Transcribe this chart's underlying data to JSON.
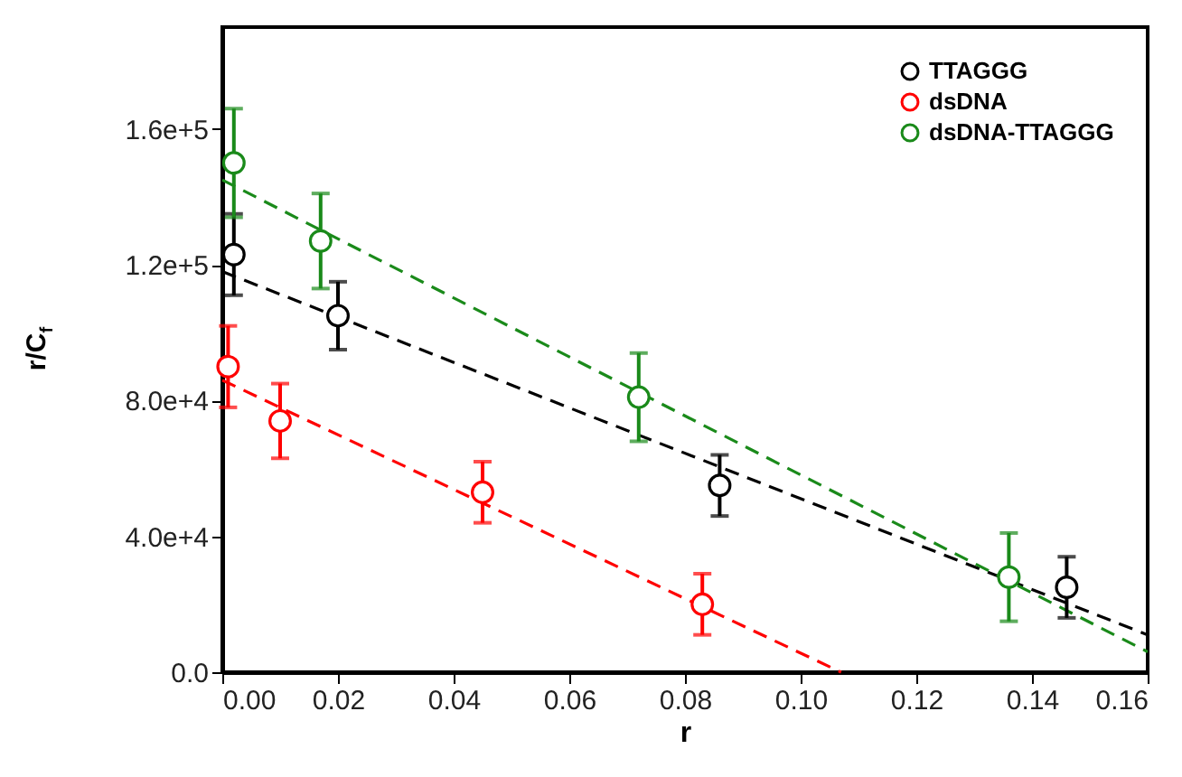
{
  "chart_data": {
    "type": "scatter",
    "xlabel": "r",
    "ylabel": "r/C$_{f}$",
    "xlim": [
      0,
      0.16
    ],
    "ylim": [
      0,
      190000
    ],
    "xticks": [
      {
        "value": 0,
        "label": "0.00"
      },
      {
        "value": 0.02,
        "label": "0.02"
      },
      {
        "value": 0.04,
        "label": "0.04"
      },
      {
        "value": 0.06,
        "label": "0.06"
      },
      {
        "value": 0.08,
        "label": "0.08"
      },
      {
        "value": 0.1,
        "label": "0.10"
      },
      {
        "value": 0.12,
        "label": "0.12"
      },
      {
        "value": 0.14,
        "label": "0.14"
      },
      {
        "value": 0.16,
        "label": "0.16"
      }
    ],
    "yticks": [
      {
        "value": 0,
        "label": "0.0"
      },
      {
        "value": 40000,
        "label": "4.0e+4"
      },
      {
        "value": 80000,
        "label": "8.0e+4"
      },
      {
        "value": 120000,
        "label": "1.2e+5"
      },
      {
        "value": 160000,
        "label": "1.6e+5"
      }
    ],
    "grid": false,
    "legend": "top right",
    "series": [
      {
        "name": "TTAGGG",
        "marker": "circle",
        "color": "#000000",
        "x": [
          0.002,
          0.02,
          0.086,
          0.146
        ],
        "values": [
          123000,
          105000,
          55000,
          25000
        ],
        "errors": [
          12000,
          10000,
          9000,
          9000
        ]
      },
      {
        "name": "dsDNA",
        "marker": "circle",
        "color": "#ff0000",
        "x": [
          0.001,
          0.01,
          0.045,
          0.083
        ],
        "values": [
          90000,
          74000,
          53000,
          20000
        ],
        "errors": [
          12000,
          11000,
          9000,
          9000
        ]
      },
      {
        "name": "dsDNA-TTAGGG",
        "marker": "circle",
        "color": "#1a8a1a",
        "x": [
          0.002,
          0.017,
          0.072,
          0.136
        ],
        "values": [
          150000,
          127000,
          81000,
          28000
        ],
        "errors": [
          16000,
          14000,
          13000,
          13000
        ]
      },
      {
        "type": "line",
        "color": "#000000",
        "line_style": "dashed",
        "x": [
          0,
          0.16
        ],
        "values": [
          118000,
          11000
        ]
      },
      {
        "type": "line",
        "color": "#ff0000",
        "line_style": "dashed",
        "x": [
          0,
          0.107
        ],
        "values": [
          86000,
          0
        ]
      },
      {
        "type": "line",
        "color": "#1a8a1a",
        "line_style": "dashed",
        "x": [
          0,
          0.16
        ],
        "values": [
          145000,
          6000
        ]
      }
    ]
  }
}
